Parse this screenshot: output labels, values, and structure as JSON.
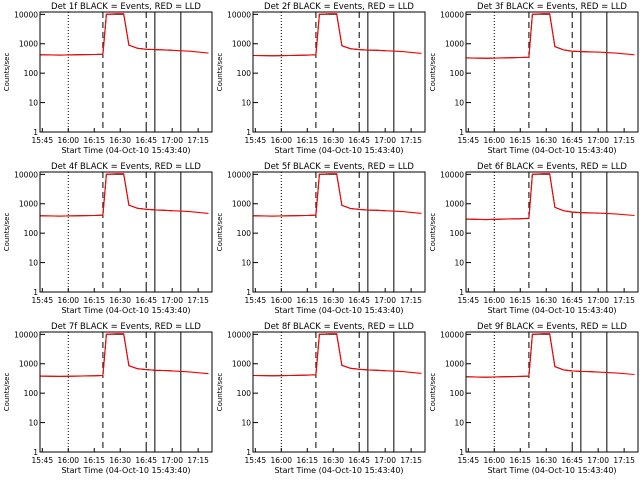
{
  "colors": {
    "events": "#000000",
    "lld": "#ff0000",
    "background": "#ffffff",
    "axes": "#000000"
  },
  "shared": {
    "xlabel": "Start Time (04-Oct-10 15:43:40)",
    "ylabel": "Counts/sec",
    "x_ticks": [
      "15:45",
      "16:00",
      "16:15",
      "16:30",
      "16:45",
      "17:00",
      "17:15"
    ],
    "y_ticks": [
      "1",
      "10",
      "100",
      "1000",
      "10000"
    ]
  },
  "chart_data": [
    {
      "type": "line",
      "title": "Det 1f BLACK = Events, RED = LLD",
      "xlabel": "Start Time (04-Oct-10 15:43:40)",
      "ylabel": "Counts/sec",
      "y_scale": "log",
      "ylim": [
        1,
        12000
      ],
      "x_range": [
        "15:43:40",
        "17:23"
      ],
      "legend": "none",
      "grid": false,
      "series": [
        {
          "name": "Events",
          "x": [
            "15:44",
            "15:55",
            "16:05",
            "16:15",
            "16:20",
            "16:22",
            "16:28",
            "16:32",
            "16:35",
            "16:40",
            "16:45",
            "16:50",
            "16:55",
            "17:00"
          ],
          "values": [
            420,
            410,
            420,
            430,
            440,
            10000,
            10000,
            10000,
            900,
            700,
            650,
            630,
            620,
            600
          ]
        },
        {
          "name": "LLD",
          "x": [
            "15:44",
            "15:55",
            "16:05",
            "16:15",
            "16:20",
            "16:22",
            "16:28",
            "16:32",
            "16:35",
            "16:40",
            "16:45",
            "16:50",
            "16:55",
            "17:00",
            "17:10",
            "17:21"
          ],
          "values": [
            420,
            410,
            420,
            430,
            440,
            10000,
            10500,
            10500,
            900,
            700,
            650,
            630,
            620,
            600,
            560,
            480
          ]
        }
      ]
    },
    {
      "type": "line",
      "title": "Det 2f BLACK = Events, RED = LLD",
      "xlabel": "Start Time (04-Oct-10 15:43:40)",
      "ylabel": "Counts/sec",
      "y_scale": "log",
      "ylim": [
        1,
        12000
      ],
      "x_range": [
        "15:43:40",
        "17:23"
      ],
      "legend": "none",
      "grid": false,
      "series": [
        {
          "name": "Events",
          "x": [
            "15:44",
            "15:55",
            "16:05",
            "16:15",
            "16:20",
            "16:22",
            "16:28",
            "16:32",
            "16:35",
            "16:40",
            "16:45",
            "16:50",
            "16:55",
            "17:00"
          ],
          "values": [
            400,
            390,
            400,
            410,
            420,
            10000,
            10000,
            10000,
            850,
            680,
            630,
            610,
            600,
            580
          ]
        },
        {
          "name": "LLD",
          "x": [
            "15:44",
            "15:55",
            "16:05",
            "16:15",
            "16:20",
            "16:22",
            "16:28",
            "16:32",
            "16:35",
            "16:40",
            "16:45",
            "16:50",
            "16:55",
            "17:00",
            "17:10",
            "17:21"
          ],
          "values": [
            400,
            390,
            400,
            410,
            420,
            10000,
            10500,
            10500,
            850,
            680,
            630,
            610,
            600,
            580,
            540,
            470
          ]
        }
      ]
    },
    {
      "type": "line",
      "title": "Det 3f BLACK = Events, RED = LLD",
      "xlabel": "Start Time (04-Oct-10 15:43:40)",
      "ylabel": "Counts/sec",
      "y_scale": "log",
      "ylim": [
        1,
        12000
      ],
      "x_range": [
        "15:43:40",
        "17:23"
      ],
      "legend": "none",
      "grid": false,
      "series": [
        {
          "name": "Events",
          "x": [
            "15:44",
            "15:55",
            "16:05",
            "16:15",
            "16:20",
            "16:22",
            "16:28",
            "16:32",
            "16:35",
            "16:40",
            "16:45",
            "16:50",
            "16:55",
            "17:00"
          ],
          "values": [
            330,
            320,
            330,
            340,
            350,
            10000,
            10000,
            10000,
            800,
            620,
            560,
            540,
            530,
            520
          ]
        },
        {
          "name": "LLD",
          "x": [
            "15:44",
            "15:55",
            "16:05",
            "16:15",
            "16:20",
            "16:22",
            "16:28",
            "16:32",
            "16:35",
            "16:40",
            "16:45",
            "16:50",
            "16:55",
            "17:00",
            "17:10",
            "17:21"
          ],
          "values": [
            330,
            320,
            330,
            340,
            350,
            10000,
            10500,
            10500,
            800,
            620,
            560,
            540,
            530,
            520,
            480,
            420
          ]
        }
      ]
    },
    {
      "type": "line",
      "title": "Det 4f BLACK = Events, RED = LLD",
      "xlabel": "Start Time (04-Oct-10 15:43:40)",
      "ylabel": "Counts/sec",
      "y_scale": "log",
      "ylim": [
        1,
        12000
      ],
      "x_range": [
        "15:43:40",
        "17:23"
      ],
      "legend": "none",
      "grid": false,
      "series": [
        {
          "name": "Events",
          "x": [
            "15:44",
            "15:55",
            "16:05",
            "16:15",
            "16:20",
            "16:22",
            "16:28",
            "16:32",
            "16:35",
            "16:40",
            "16:45",
            "16:50",
            "16:55",
            "17:00"
          ],
          "values": [
            390,
            380,
            390,
            400,
            410,
            10000,
            10000,
            10000,
            900,
            700,
            650,
            620,
            600,
            580
          ]
        },
        {
          "name": "LLD",
          "x": [
            "15:44",
            "15:55",
            "16:05",
            "16:15",
            "16:20",
            "16:22",
            "16:28",
            "16:32",
            "16:35",
            "16:40",
            "16:45",
            "16:50",
            "16:55",
            "17:00",
            "17:10",
            "17:21"
          ],
          "values": [
            390,
            380,
            390,
            400,
            410,
            10000,
            10500,
            10500,
            900,
            700,
            650,
            620,
            600,
            580,
            540,
            470
          ]
        }
      ]
    },
    {
      "type": "line",
      "title": "Det 5f BLACK = Events, RED = LLD",
      "xlabel": "Start Time (04-Oct-10 15:43:40)",
      "ylabel": "Counts/sec",
      "y_scale": "log",
      "ylim": [
        1,
        12000
      ],
      "x_range": [
        "15:43:40",
        "17:23"
      ],
      "legend": "none",
      "grid": false,
      "series": [
        {
          "name": "Events",
          "x": [
            "15:44",
            "15:55",
            "16:05",
            "16:15",
            "16:20",
            "16:22",
            "16:28",
            "16:32",
            "16:35",
            "16:40",
            "16:45",
            "16:50",
            "16:55",
            "17:00"
          ],
          "values": [
            390,
            380,
            390,
            400,
            410,
            10000,
            10000,
            10000,
            880,
            690,
            640,
            610,
            600,
            580
          ]
        },
        {
          "name": "LLD",
          "x": [
            "15:44",
            "15:55",
            "16:05",
            "16:15",
            "16:20",
            "16:22",
            "16:28",
            "16:32",
            "16:35",
            "16:40",
            "16:45",
            "16:50",
            "16:55",
            "17:00",
            "17:10",
            "17:21"
          ],
          "values": [
            390,
            380,
            390,
            400,
            410,
            10000,
            10500,
            10500,
            880,
            690,
            640,
            610,
            600,
            580,
            540,
            470
          ]
        }
      ]
    },
    {
      "type": "line",
      "title": "Det 6f BLACK = Events, RED = LLD",
      "xlabel": "Start Time (04-Oct-10 15:43:40)",
      "ylabel": "Counts/sec",
      "y_scale": "log",
      "ylim": [
        1,
        12000
      ],
      "x_range": [
        "15:43:40",
        "17:23"
      ],
      "legend": "none",
      "grid": false,
      "series": [
        {
          "name": "Events",
          "x": [
            "15:44",
            "15:55",
            "16:05",
            "16:15",
            "16:20",
            "16:22",
            "16:28",
            "16:32",
            "16:35",
            "16:40",
            "16:45",
            "16:50",
            "16:55",
            "17:00"
          ],
          "values": [
            300,
            290,
            300,
            310,
            320,
            10000,
            10000,
            10000,
            750,
            580,
            520,
            500,
            490,
            480
          ]
        },
        {
          "name": "LLD",
          "x": [
            "15:44",
            "15:55",
            "16:05",
            "16:15",
            "16:20",
            "16:22",
            "16:28",
            "16:32",
            "16:35",
            "16:40",
            "16:45",
            "16:50",
            "16:55",
            "17:00",
            "17:10",
            "17:21"
          ],
          "values": [
            300,
            290,
            300,
            310,
            320,
            10000,
            10500,
            10500,
            750,
            580,
            520,
            500,
            490,
            480,
            450,
            400
          ]
        }
      ]
    },
    {
      "type": "line",
      "title": "Det 7f BLACK = Events, RED = LLD",
      "xlabel": "Start Time (04-Oct-10 15:43:40)",
      "ylabel": "Counts/sec",
      "y_scale": "log",
      "ylim": [
        1,
        12000
      ],
      "x_range": [
        "15:43:40",
        "17:23"
      ],
      "legend": "none",
      "grid": false,
      "series": [
        {
          "name": "Events",
          "x": [
            "15:44",
            "15:55",
            "16:05",
            "16:15",
            "16:20",
            "16:22",
            "16:28",
            "16:32",
            "16:35",
            "16:40",
            "16:45",
            "16:50",
            "16:55",
            "17:00"
          ],
          "values": [
            380,
            370,
            380,
            390,
            400,
            10000,
            10000,
            10000,
            860,
            680,
            630,
            600,
            590,
            570
          ]
        },
        {
          "name": "LLD",
          "x": [
            "15:44",
            "15:55",
            "16:05",
            "16:15",
            "16:20",
            "16:22",
            "16:28",
            "16:32",
            "16:35",
            "16:40",
            "16:45",
            "16:50",
            "16:55",
            "17:00",
            "17:10",
            "17:21"
          ],
          "values": [
            380,
            370,
            380,
            390,
            400,
            10000,
            10500,
            10500,
            860,
            680,
            630,
            600,
            590,
            570,
            530,
            460
          ]
        }
      ]
    },
    {
      "type": "line",
      "title": "Det 8f BLACK = Events, RED = LLD",
      "xlabel": "Start Time (04-Oct-10 15:43:40)",
      "ylabel": "Counts/sec",
      "y_scale": "log",
      "ylim": [
        1,
        12000
      ],
      "x_range": [
        "15:43:40",
        "17:23"
      ],
      "legend": "none",
      "grid": false,
      "series": [
        {
          "name": "Events",
          "x": [
            "15:44",
            "15:55",
            "16:05",
            "16:15",
            "16:20",
            "16:22",
            "16:28",
            "16:32",
            "16:35",
            "16:40",
            "16:45",
            "16:50",
            "16:55",
            "17:00"
          ],
          "values": [
            400,
            390,
            400,
            410,
            420,
            10000,
            10000,
            10000,
            880,
            700,
            650,
            620,
            600,
            580
          ]
        },
        {
          "name": "LLD",
          "x": [
            "15:44",
            "15:55",
            "16:05",
            "16:15",
            "16:20",
            "16:22",
            "16:28",
            "16:32",
            "16:35",
            "16:40",
            "16:45",
            "16:50",
            "16:55",
            "17:00",
            "17:10",
            "17:21"
          ],
          "values": [
            400,
            390,
            400,
            410,
            420,
            10000,
            10500,
            10500,
            880,
            700,
            650,
            620,
            600,
            580,
            540,
            470
          ]
        }
      ]
    },
    {
      "type": "line",
      "title": "Det 9f BLACK = Events, RED = LLD",
      "xlabel": "Start Time (04-Oct-10 15:43:40)",
      "ylabel": "Counts/sec",
      "y_scale": "log",
      "ylim": [
        1,
        12000
      ],
      "x_range": [
        "15:43:40",
        "17:23"
      ],
      "legend": "none",
      "grid": false,
      "series": [
        {
          "name": "Events",
          "x": [
            "15:44",
            "15:55",
            "16:05",
            "16:15",
            "16:20",
            "16:22",
            "16:28",
            "16:32",
            "16:35",
            "16:40",
            "16:45",
            "16:50",
            "16:55",
            "17:00"
          ],
          "values": [
            360,
            350,
            360,
            370,
            380,
            10000,
            10000,
            10000,
            800,
            620,
            570,
            550,
            540,
            520
          ]
        },
        {
          "name": "LLD",
          "x": [
            "15:44",
            "15:55",
            "16:05",
            "16:15",
            "16:20",
            "16:22",
            "16:28",
            "16:32",
            "16:35",
            "16:40",
            "16:45",
            "16:50",
            "16:55",
            "17:00",
            "17:10",
            "17:21"
          ],
          "values": [
            360,
            350,
            360,
            370,
            380,
            10000,
            10500,
            10500,
            800,
            620,
            570,
            550,
            540,
            520,
            490,
            430
          ]
        }
      ]
    }
  ]
}
